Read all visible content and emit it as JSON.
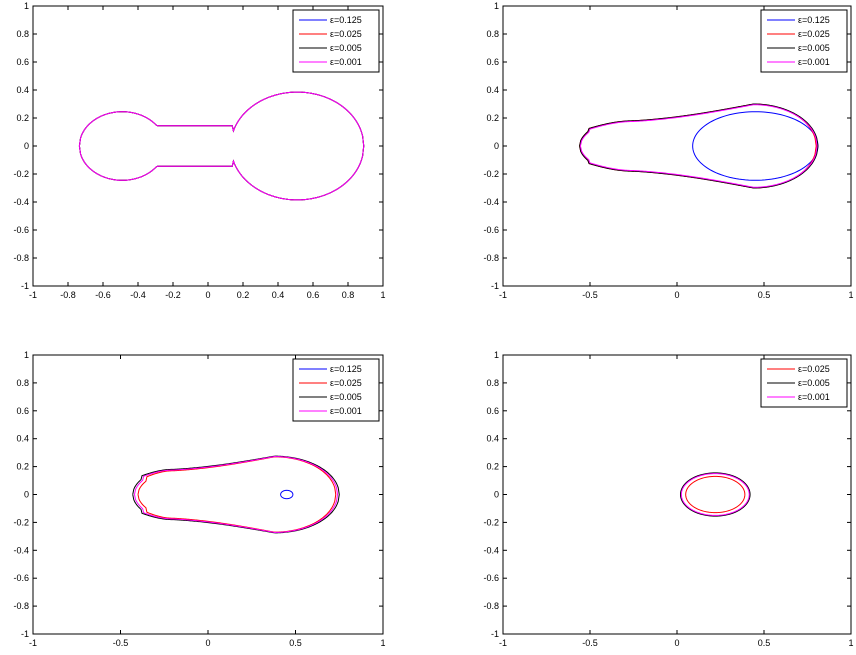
{
  "chart_data": [
    {
      "type": "line",
      "subplot": "top-left",
      "xlim": [
        -1,
        1
      ],
      "ylim": [
        -1,
        1
      ],
      "xticks": [
        "-1",
        "-0.8",
        "-0.6",
        "-0.4",
        "-0.2",
        "0",
        "0.2",
        "0.4",
        "0.6",
        "0.8",
        "1"
      ],
      "xtick_values": [
        -1,
        -0.8,
        -0.6,
        -0.4,
        -0.2,
        0,
        0.2,
        0.4,
        0.6,
        0.8,
        1
      ],
      "yticks": [
        "-1",
        "-0.8",
        "-0.6",
        "-0.4",
        "-0.2",
        "0",
        "0.2",
        "0.4",
        "0.6",
        "0.8",
        "1"
      ],
      "ytick_values": [
        -1,
        -0.8,
        -0.6,
        -0.4,
        -0.2,
        0,
        0.2,
        0.4,
        0.6,
        0.8,
        1
      ],
      "legend_position": "top-right",
      "series": [
        {
          "name": "ε=0.125",
          "color": "#0000ff",
          "shape": "dumbbell",
          "cx1": -0.49,
          "r1": 0.245,
          "cx2": 0.51,
          "rx2": 0.38,
          "ry2": 0.385,
          "neck_half": 0.145,
          "neck_x": [
            -0.3,
            0.14
          ]
        },
        {
          "name": "ε=0.025",
          "color": "#ff0000",
          "shape": "dumbbell",
          "cx1": -0.49,
          "r1": 0.245,
          "cx2": 0.51,
          "rx2": 0.38,
          "ry2": 0.385,
          "neck_half": 0.145,
          "neck_x": [
            -0.3,
            0.14
          ]
        },
        {
          "name": "ε=0.005",
          "color": "#000000",
          "shape": "dumbbell",
          "cx1": -0.49,
          "r1": 0.245,
          "cx2": 0.51,
          "rx2": 0.38,
          "ry2": 0.385,
          "neck_half": 0.145,
          "neck_x": [
            -0.3,
            0.14
          ]
        },
        {
          "name": "ε=0.001",
          "color": "#ff00ff",
          "shape": "dumbbell",
          "cx1": -0.49,
          "r1": 0.245,
          "cx2": 0.51,
          "rx2": 0.38,
          "ry2": 0.385,
          "neck_half": 0.145,
          "neck_x": [
            -0.3,
            0.14
          ]
        }
      ]
    },
    {
      "type": "line",
      "subplot": "top-right",
      "xlim": [
        -1,
        1
      ],
      "ylim": [
        -1,
        1
      ],
      "xticks": [
        "-1",
        "-0.5",
        "0",
        "0.5",
        "1"
      ],
      "xtick_values": [
        -1,
        -0.5,
        0,
        0.5,
        1
      ],
      "yticks": [
        "-1",
        "-0.8",
        "-0.6",
        "-0.4",
        "-0.2",
        "0",
        "0.2",
        "0.4",
        "0.6",
        "0.8",
        "1"
      ],
      "ytick_values": [
        -1,
        -0.8,
        -0.6,
        -0.4,
        -0.2,
        0,
        0.2,
        0.4,
        0.6,
        0.8,
        1
      ],
      "legend_position": "top-right",
      "series": [
        {
          "name": "ε=0.125",
          "color": "#0000ff",
          "shape": "ellipse",
          "cx": 0.45,
          "rx": 0.36,
          "ry": 0.245
        },
        {
          "name": "ε=0.025",
          "color": "#ff0000",
          "shape": "teardrop",
          "xl": -0.56,
          "xr": 0.8,
          "cx": 0.44,
          "ry": 0.3,
          "hl": 0.105,
          "hn": 0.18,
          "xn": -0.25
        },
        {
          "name": "ε=0.005",
          "color": "#000000",
          "shape": "teardrop",
          "xl": -0.56,
          "xr": 0.81,
          "cx": 0.44,
          "ry": 0.3,
          "hl": 0.105,
          "hn": 0.18,
          "xn": -0.25
        },
        {
          "name": "ε=0.001",
          "color": "#ff00ff",
          "shape": "teardrop",
          "xl": -0.555,
          "xr": 0.805,
          "cx": 0.44,
          "ry": 0.295,
          "hl": 0.1,
          "hn": 0.175,
          "xn": -0.25
        }
      ]
    },
    {
      "type": "line",
      "subplot": "bottom-left",
      "xlim": [
        -1,
        1
      ],
      "ylim": [
        -1,
        1
      ],
      "xticks": [
        "-1",
        "-0.5",
        "0",
        "0.5",
        "1"
      ],
      "xtick_values": [
        -1,
        -0.5,
        0,
        0.5,
        1
      ],
      "yticks": [
        "-1",
        "-0.8",
        "-0.6",
        "-0.4",
        "-0.2",
        "0",
        "0.2",
        "0.4",
        "0.6",
        "0.8",
        "1"
      ],
      "ytick_values": [
        -1,
        -0.8,
        -0.6,
        -0.4,
        -0.2,
        0,
        0.2,
        0.4,
        0.6,
        0.8,
        1
      ],
      "legend_position": "top-right",
      "series": [
        {
          "name": "ε=0.125",
          "color": "#0000ff",
          "shape": "ellipse",
          "cx": 0.45,
          "rx": 0.035,
          "ry": 0.03
        },
        {
          "name": "ε=0.025",
          "color": "#ff0000",
          "shape": "teardrop",
          "xl": -0.4,
          "xr": 0.73,
          "cx": 0.38,
          "ry": 0.27,
          "hl": 0.1,
          "hn": 0.17,
          "xn": -0.2
        },
        {
          "name": "ε=0.005",
          "color": "#000000",
          "shape": "teardrop",
          "xl": -0.43,
          "xr": 0.75,
          "cx": 0.38,
          "ry": 0.275,
          "hl": 0.11,
          "hn": 0.18,
          "xn": -0.2
        },
        {
          "name": "ε=0.001",
          "color": "#ff00ff",
          "shape": "teardrop",
          "xl": -0.42,
          "xr": 0.74,
          "cx": 0.38,
          "ry": 0.272,
          "hl": 0.105,
          "hn": 0.175,
          "xn": -0.2
        }
      ]
    },
    {
      "type": "line",
      "subplot": "bottom-right",
      "xlim": [
        -1,
        1
      ],
      "ylim": [
        -1,
        1
      ],
      "xticks": [
        "-1",
        "-0.5",
        "0",
        "0.5",
        "1"
      ],
      "xtick_values": [
        -1,
        -0.5,
        0,
        0.5,
        1
      ],
      "yticks": [
        "-1",
        "-0.8",
        "-0.6",
        "-0.4",
        "-0.2",
        "0",
        "0.2",
        "0.4",
        "0.6",
        "0.8",
        "1"
      ],
      "ytick_values": [
        -1,
        -0.8,
        -0.6,
        -0.4,
        -0.2,
        0,
        0.2,
        0.4,
        0.6,
        0.8,
        1
      ],
      "legend_position": "top-right",
      "series": [
        {
          "name": "ε=0.025",
          "color": "#ff0000",
          "shape": "ellipse",
          "cx": 0.22,
          "rx": 0.17,
          "ry": 0.13
        },
        {
          "name": "ε=0.005",
          "color": "#000000",
          "shape": "ellipse",
          "cx": 0.22,
          "rx": 0.2,
          "ry": 0.155
        },
        {
          "name": "ε=0.001",
          "color": "#ff00ff",
          "shape": "ellipse",
          "cx": 0.22,
          "rx": 0.195,
          "ry": 0.15
        }
      ]
    }
  ]
}
